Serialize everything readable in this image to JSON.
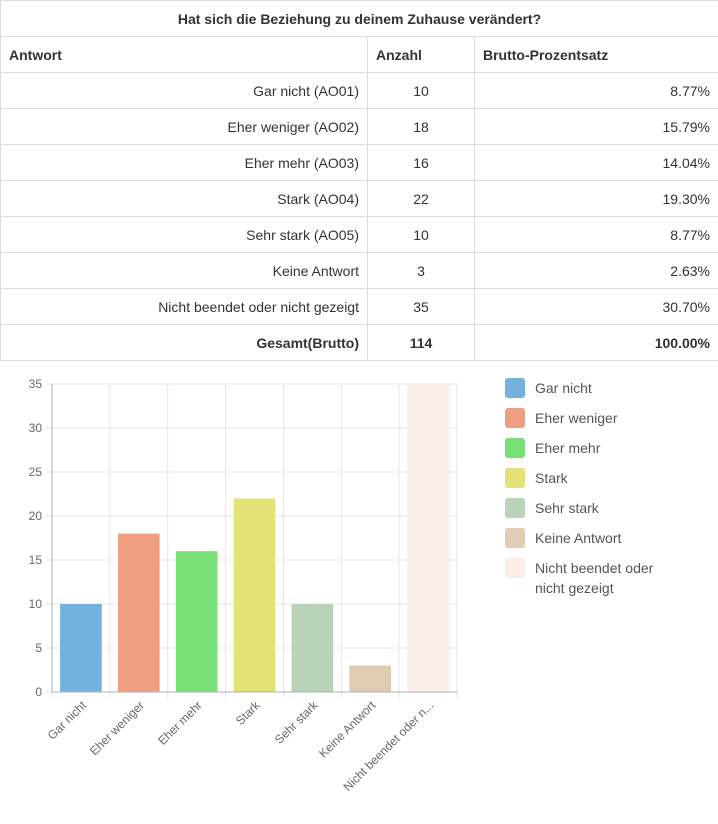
{
  "table": {
    "title": "Hat sich die Beziehung zu deinem Zuhause verändert?",
    "headers": [
      "Antwort",
      "Anzahl",
      "Brutto-Prozentsatz"
    ],
    "rows": [
      {
        "answer": "Gar nicht (AO01)",
        "count": "10",
        "percent": "8.77%"
      },
      {
        "answer": "Eher weniger (AO02)",
        "count": "18",
        "percent": "15.79%"
      },
      {
        "answer": "Eher mehr (AO03)",
        "count": "16",
        "percent": "14.04%"
      },
      {
        "answer": "Stark (AO04)",
        "count": "22",
        "percent": "19.30%"
      },
      {
        "answer": "Sehr stark (AO05)",
        "count": "10",
        "percent": "8.77%"
      },
      {
        "answer": "Keine Antwort",
        "count": "3",
        "percent": "2.63%"
      },
      {
        "answer": "Nicht beendet oder nicht gezeigt",
        "count": "35",
        "percent": "30.70%"
      }
    ],
    "total": {
      "answer": "Gesamt(Brutto)",
      "count": "114",
      "percent": "100.00%"
    }
  },
  "chart_data": {
    "type": "bar",
    "categories": [
      "Gar nicht",
      "Eher weniger",
      "Eher mehr",
      "Stark",
      "Sehr stark",
      "Keine Antwort",
      "Nicht beendet oder nicht gezeigt"
    ],
    "tick_labels": [
      "Gar nicht",
      "Eher weniger",
      "Eher mehr",
      "Stark",
      "Sehr stark",
      "Keine Antwort",
      "Nicht beendet oder n..."
    ],
    "values": [
      10,
      18,
      16,
      22,
      10,
      3,
      35
    ],
    "colors": [
      "#73b1de",
      "#f09e82",
      "#78e077",
      "#e3e277",
      "#b9d3b8",
      "#e0ccb2",
      "#fbede8"
    ],
    "legend": [
      {
        "label": "Gar nicht",
        "color": "#73b1de"
      },
      {
        "label": "Eher weniger",
        "color": "#f09e82"
      },
      {
        "label": "Eher mehr",
        "color": "#78e077"
      },
      {
        "label": "Stark",
        "color": "#e3e277"
      },
      {
        "label": "Sehr stark",
        "color": "#b9d3b8"
      },
      {
        "label": "Keine Antwort",
        "color": "#e0ccb2"
      },
      {
        "label": "Nicht beendet oder nicht gezeigt",
        "color": "#fbede8"
      }
    ],
    "legend_position": "right",
    "ylim": [
      0,
      35
    ],
    "yticks": [
      0,
      5,
      10,
      15,
      20,
      25,
      30,
      35
    ],
    "grid": true,
    "title": "",
    "xlabel": "",
    "ylabel": ""
  }
}
